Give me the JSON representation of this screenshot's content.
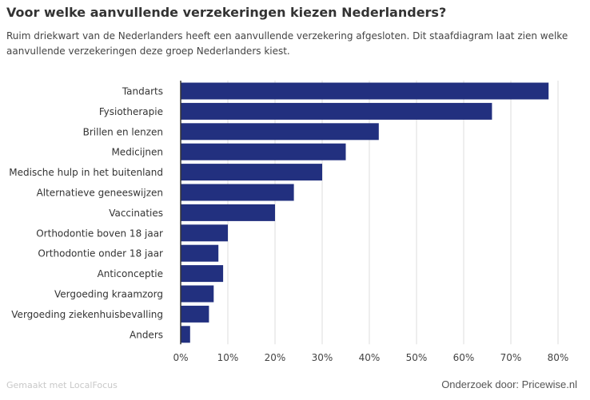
{
  "header": {
    "title": "Voor welke aanvullende verzekeringen kiezen Nederlanders?",
    "subtitle": "Ruim driekwart van de Nederlanders heeft een aanvullende verzekering afgesloten. Dit staafdiagram laat zien welke aanvullende verzekeringen deze groep Nederlanders kiest."
  },
  "footer": {
    "made_with": "Gemaakt met LocalFocus",
    "source": "Onderzoek door: Pricewise.nl"
  },
  "colors": {
    "bar": "#22307f",
    "grid": "#dddddd",
    "axis": "#333333"
  },
  "chart_data": {
    "type": "bar",
    "orientation": "horizontal",
    "title": "Voor welke aanvullende verzekeringen kiezen Nederlanders?",
    "categories": [
      "Tandarts",
      "Fysiotherapie",
      "Brillen en lenzen",
      "Medicijnen",
      "Medische hulp in het buitenland",
      "Alternatieve geneeswijzen",
      "Vaccinaties",
      "Orthodontie boven 18 jaar",
      "Orthodontie onder 18 jaar",
      "Anticonceptie",
      "Vergoeding kraamzorg",
      "Vergoeding ziekenhuisbevalling",
      "Anders"
    ],
    "values": [
      78,
      66,
      42,
      35,
      30,
      24,
      20,
      10,
      8,
      9,
      7,
      6,
      2
    ],
    "xlim": [
      0,
      80
    ],
    "xticks": [
      0,
      10,
      20,
      30,
      40,
      50,
      60,
      70,
      80
    ],
    "tick_labels": [
      "0%",
      "10%",
      "20%",
      "30%",
      "40%",
      "50%",
      "60%",
      "70%",
      "80%"
    ],
    "xlabel": "",
    "ylabel": "",
    "grid": true
  }
}
